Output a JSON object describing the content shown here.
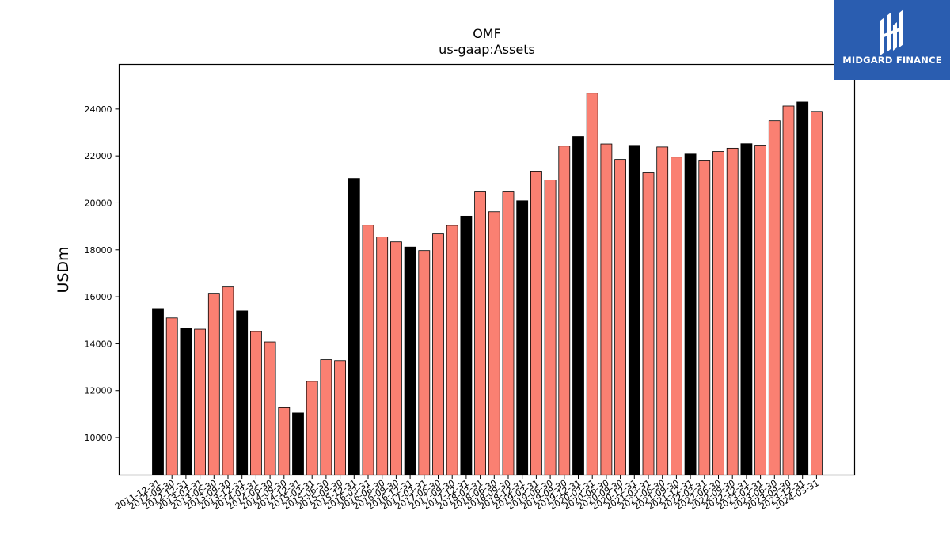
{
  "logo": {
    "text": "MIDGARD FINANCE",
    "background": "#2a5db0"
  },
  "chart_data": {
    "type": "bar",
    "title": "OMF",
    "subtitle": "us-gaap:Assets",
    "xlabel": "",
    "ylabel": "USDm",
    "ylim": [
      8400,
      25900
    ],
    "yticks": [
      10000,
      12000,
      14000,
      16000,
      18000,
      20000,
      22000,
      24000
    ],
    "grid": false,
    "colors": {
      "annual": "#000000",
      "quarterly": "#fa8072",
      "edge": "#000000"
    },
    "categories": [
      "2011-12-31",
      "2012-09-30",
      "2012-12-31",
      "2013-03-31",
      "2013-06-30",
      "2013-09-30",
      "2013-12-31",
      "2014-03-31",
      "2014-06-30",
      "2014-09-30",
      "2014-12-31",
      "2015-03-31",
      "2015-06-30",
      "2015-09-30",
      "2015-12-31",
      "2016-03-31",
      "2016-06-30",
      "2016-09-30",
      "2016-12-31",
      "2017-03-31",
      "2017-06-30",
      "2017-09-30",
      "2017-12-31",
      "2018-03-31",
      "2018-06-30",
      "2018-09-30",
      "2018-12-31",
      "2019-03-31",
      "2019-06-30",
      "2019-09-30",
      "2019-12-31",
      "2020-03-31",
      "2020-06-30",
      "2020-09-30",
      "2020-12-31",
      "2021-03-31",
      "2021-06-30",
      "2021-09-30",
      "2021-12-31",
      "2022-03-31",
      "2022-06-30",
      "2022-09-30",
      "2022-12-31",
      "2023-03-31",
      "2023-06-30",
      "2023-09-30",
      "2023-12-31",
      "2024-03-31"
    ],
    "values": [
      15500,
      15100,
      14650,
      14620,
      16150,
      16420,
      15400,
      14520,
      14080,
      11270,
      11050,
      12400,
      13320,
      13280,
      21040,
      19050,
      18550,
      18340,
      18120,
      17970,
      18680,
      19040,
      19430,
      20470,
      19620,
      20470,
      20090,
      21350,
      20980,
      22420,
      22830,
      24680,
      22510,
      21850,
      22450,
      21280,
      22380,
      21950,
      22080,
      21820,
      22190,
      22330,
      22520,
      22460,
      23500,
      24130,
      24300,
      23900
    ],
    "annual": [
      true,
      false,
      true,
      false,
      false,
      false,
      true,
      false,
      false,
      false,
      true,
      false,
      false,
      false,
      true,
      false,
      false,
      false,
      true,
      false,
      false,
      false,
      true,
      false,
      false,
      false,
      true,
      false,
      false,
      false,
      true,
      false,
      false,
      false,
      true,
      false,
      false,
      false,
      true,
      false,
      false,
      false,
      true,
      false,
      false,
      false,
      true,
      false
    ]
  }
}
